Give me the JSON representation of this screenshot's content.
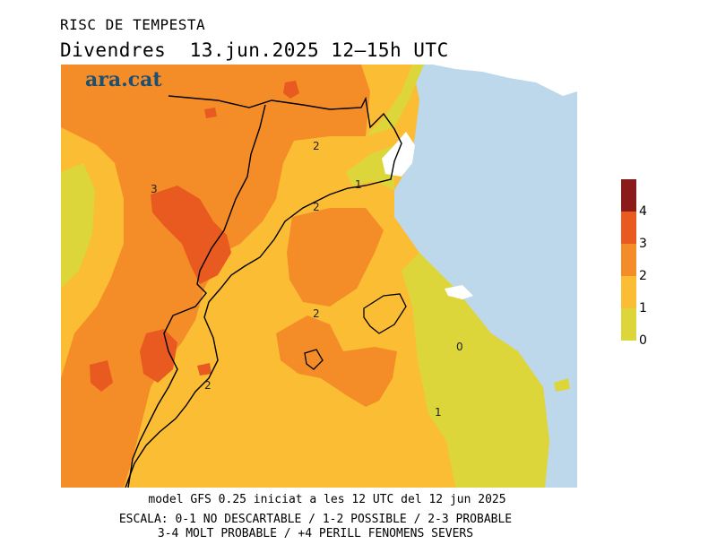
{
  "header": {
    "title": "RISC DE TEMPESTA",
    "subtitle": "Divendres  13.jun.2025 12–15h UTC"
  },
  "logo": {
    "text": "ara.cat"
  },
  "map": {
    "contour_labels": [
      "3",
      "2",
      "2",
      "1",
      "2",
      "2",
      "0",
      "1"
    ]
  },
  "legend": {
    "labels": [
      "4",
      "3",
      "2",
      "1",
      "0"
    ],
    "colors": [
      "#8b1a1a",
      "#e85a20",
      "#f48c28",
      "#fbbd34",
      "#dcd63a"
    ]
  },
  "footer": {
    "model_line": "model GFS 0.25 iniciat a les 12 UTC del 12 jun 2025",
    "scale_line1": "ESCALA: 0-1 NO DESCARTABLE / 1-2 POSSIBLE / 2-3 PROBABLE",
    "scale_line2": "3-4 MOLT PROBABLE / +4 PERILL FENOMENS SEVERS"
  },
  "colors": {
    "sea": "#bcd8ea",
    "level_0_1": "#dcd63a",
    "level_1_2": "#fbbd34",
    "level_2_3": "#f48c28",
    "level_3_4": "#e85a20",
    "level_4": "#8b1a1a"
  }
}
